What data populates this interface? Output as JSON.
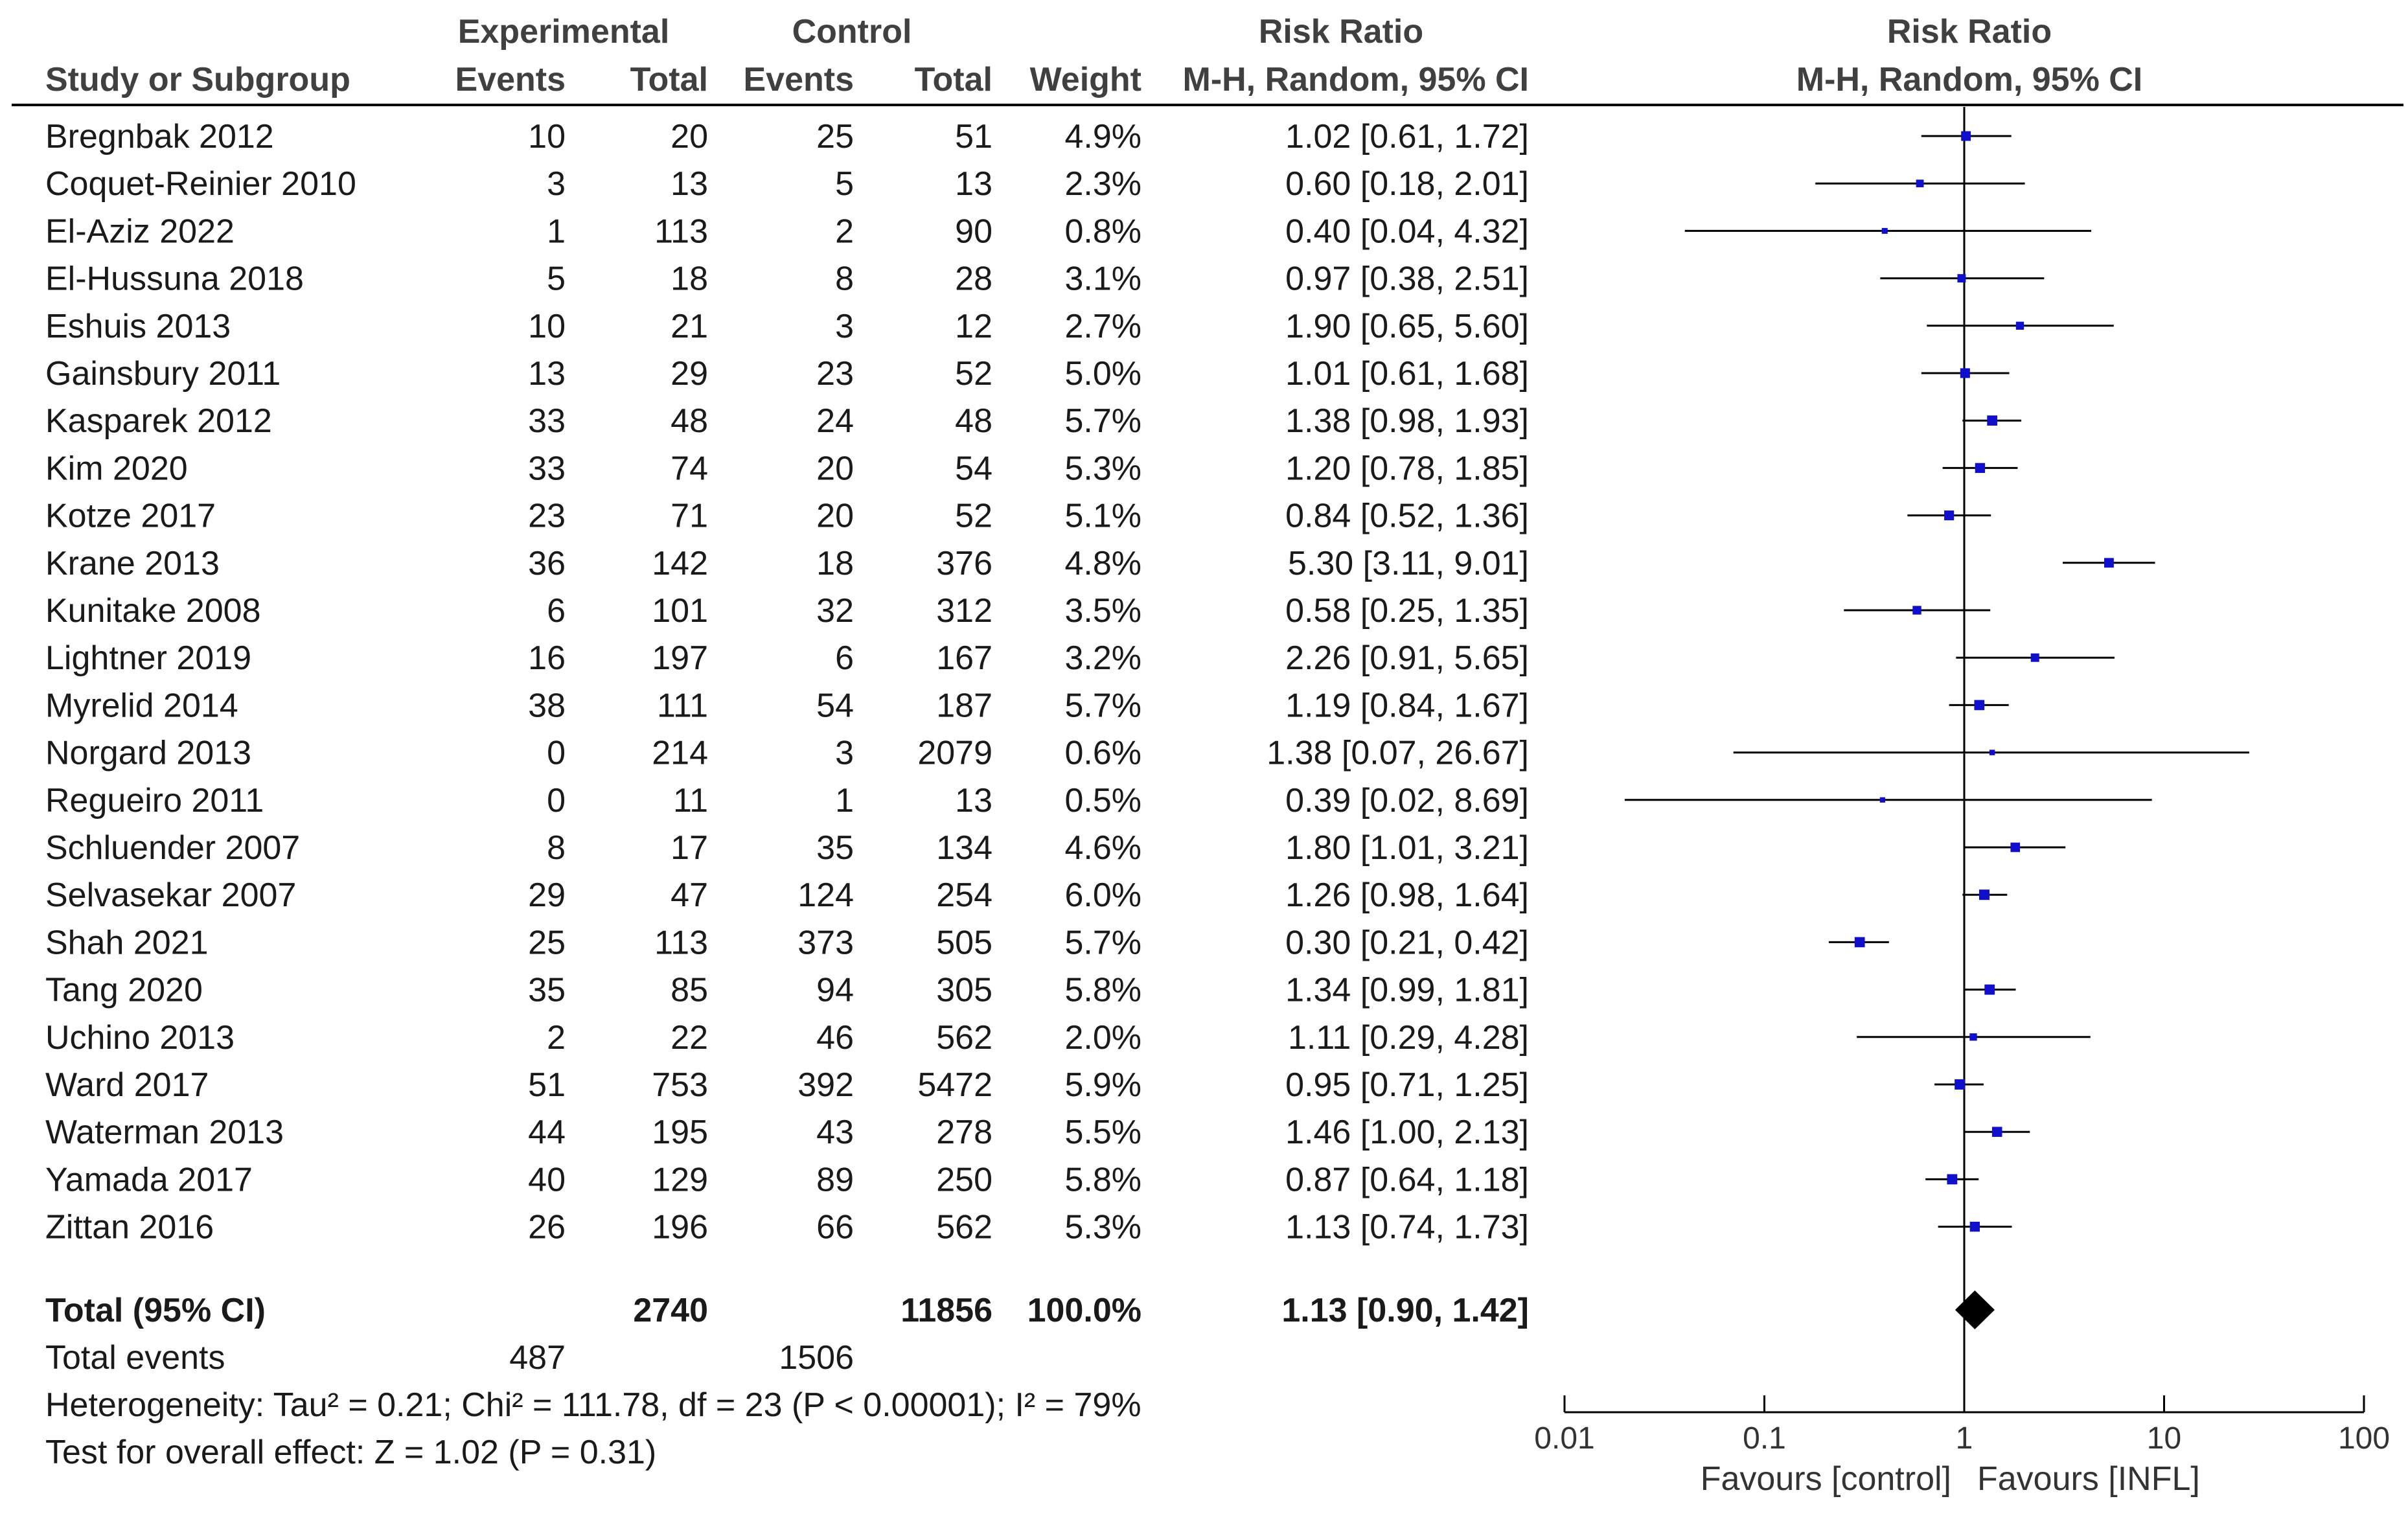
{
  "colors": {
    "marker": "#1010cc",
    "line": "#000000",
    "text": "#1a1a1a",
    "header": "#404040"
  },
  "headers": {
    "experimental": "Experimental",
    "control": "Control",
    "risk_ratio_table": "Risk Ratio",
    "risk_ratio_plot": "Risk Ratio",
    "study": "Study or Subgroup",
    "events_exp": "Events",
    "total_exp": "Total",
    "events_ctl": "Events",
    "total_ctl": "Total",
    "weight": "Weight",
    "method_table": "M-H, Random, 95% CI",
    "method_plot": "M-H, Random, 95% CI"
  },
  "chart_data": {
    "type": "forest",
    "xscale": "log",
    "xlim": [
      0.01,
      100
    ],
    "null_value": 1,
    "xticks": [
      "0.01",
      "0.1",
      "1",
      "10",
      "100"
    ],
    "favours_left": "Favours [control]",
    "favours_right": "Favours [INFL]",
    "studies": [
      {
        "name": "Bregnbak 2012",
        "e_events": "10",
        "e_total": "20",
        "c_events": "25",
        "c_total": "51",
        "weight": "4.9%",
        "ci_text": "1.02 [0.61, 1.72]",
        "rr": 1.02,
        "lo": 0.61,
        "hi": 1.72
      },
      {
        "name": "Coquet-Reinier 2010",
        "e_events": "3",
        "e_total": "13",
        "c_events": "5",
        "c_total": "13",
        "weight": "2.3%",
        "ci_text": "0.60 [0.18, 2.01]",
        "rr": 0.6,
        "lo": 0.18,
        "hi": 2.01
      },
      {
        "name": "El-Aziz 2022",
        "e_events": "1",
        "e_total": "113",
        "c_events": "2",
        "c_total": "90",
        "weight": "0.8%",
        "ci_text": "0.40 [0.04, 4.32]",
        "rr": 0.4,
        "lo": 0.04,
        "hi": 4.32
      },
      {
        "name": "El-Hussuna 2018",
        "e_events": "5",
        "e_total": "18",
        "c_events": "8",
        "c_total": "28",
        "weight": "3.1%",
        "ci_text": "0.97 [0.38, 2.51]",
        "rr": 0.97,
        "lo": 0.38,
        "hi": 2.51
      },
      {
        "name": "Eshuis 2013",
        "e_events": "10",
        "e_total": "21",
        "c_events": "3",
        "c_total": "12",
        "weight": "2.7%",
        "ci_text": "1.90 [0.65, 5.60]",
        "rr": 1.9,
        "lo": 0.65,
        "hi": 5.6
      },
      {
        "name": "Gainsbury 2011",
        "e_events": "13",
        "e_total": "29",
        "c_events": "23",
        "c_total": "52",
        "weight": "5.0%",
        "ci_text": "1.01 [0.61, 1.68]",
        "rr": 1.01,
        "lo": 0.61,
        "hi": 1.68
      },
      {
        "name": "Kasparek 2012",
        "e_events": "33",
        "e_total": "48",
        "c_events": "24",
        "c_total": "48",
        "weight": "5.7%",
        "ci_text": "1.38 [0.98, 1.93]",
        "rr": 1.38,
        "lo": 0.98,
        "hi": 1.93
      },
      {
        "name": "Kim 2020",
        "e_events": "33",
        "e_total": "74",
        "c_events": "20",
        "c_total": "54",
        "weight": "5.3%",
        "ci_text": "1.20 [0.78, 1.85]",
        "rr": 1.2,
        "lo": 0.78,
        "hi": 1.85
      },
      {
        "name": "Kotze 2017",
        "e_events": "23",
        "e_total": "71",
        "c_events": "20",
        "c_total": "52",
        "weight": "5.1%",
        "ci_text": "0.84 [0.52, 1.36]",
        "rr": 0.84,
        "lo": 0.52,
        "hi": 1.36
      },
      {
        "name": "Krane 2013",
        "e_events": "36",
        "e_total": "142",
        "c_events": "18",
        "c_total": "376",
        "weight": "4.8%",
        "ci_text": "5.30 [3.11, 9.01]",
        "rr": 5.3,
        "lo": 3.11,
        "hi": 9.01
      },
      {
        "name": "Kunitake 2008",
        "e_events": "6",
        "e_total": "101",
        "c_events": "32",
        "c_total": "312",
        "weight": "3.5%",
        "ci_text": "0.58 [0.25, 1.35]",
        "rr": 0.58,
        "lo": 0.25,
        "hi": 1.35
      },
      {
        "name": "Lightner 2019",
        "e_events": "16",
        "e_total": "197",
        "c_events": "6",
        "c_total": "167",
        "weight": "3.2%",
        "ci_text": "2.26 [0.91, 5.65]",
        "rr": 2.26,
        "lo": 0.91,
        "hi": 5.65
      },
      {
        "name": "Myrelid 2014",
        "e_events": "38",
        "e_total": "111",
        "c_events": "54",
        "c_total": "187",
        "weight": "5.7%",
        "ci_text": "1.19 [0.84, 1.67]",
        "rr": 1.19,
        "lo": 0.84,
        "hi": 1.67
      },
      {
        "name": "Norgard 2013",
        "e_events": "0",
        "e_total": "214",
        "c_events": "3",
        "c_total": "2079",
        "weight": "0.6%",
        "ci_text": "1.38 [0.07, 26.67]",
        "rr": 1.38,
        "lo": 0.07,
        "hi": 26.67
      },
      {
        "name": "Regueiro 2011",
        "e_events": "0",
        "e_total": "11",
        "c_events": "1",
        "c_total": "13",
        "weight": "0.5%",
        "ci_text": "0.39 [0.02, 8.69]",
        "rr": 0.39,
        "lo": 0.02,
        "hi": 8.69
      },
      {
        "name": "Schluender 2007",
        "e_events": "8",
        "e_total": "17",
        "c_events": "35",
        "c_total": "134",
        "weight": "4.6%",
        "ci_text": "1.80 [1.01, 3.21]",
        "rr": 1.8,
        "lo": 1.01,
        "hi": 3.21
      },
      {
        "name": "Selvasekar 2007",
        "e_events": "29",
        "e_total": "47",
        "c_events": "124",
        "c_total": "254",
        "weight": "6.0%",
        "ci_text": "1.26 [0.98, 1.64]",
        "rr": 1.26,
        "lo": 0.98,
        "hi": 1.64
      },
      {
        "name": "Shah 2021",
        "e_events": "25",
        "e_total": "113",
        "c_events": "373",
        "c_total": "505",
        "weight": "5.7%",
        "ci_text": "0.30 [0.21, 0.42]",
        "rr": 0.3,
        "lo": 0.21,
        "hi": 0.42
      },
      {
        "name": "Tang 2020",
        "e_events": "35",
        "e_total": "85",
        "c_events": "94",
        "c_total": "305",
        "weight": "5.8%",
        "ci_text": "1.34 [0.99, 1.81]",
        "rr": 1.34,
        "lo": 0.99,
        "hi": 1.81
      },
      {
        "name": "Uchino 2013",
        "e_events": "2",
        "e_total": "22",
        "c_events": "46",
        "c_total": "562",
        "weight": "2.0%",
        "ci_text": "1.11 [0.29, 4.28]",
        "rr": 1.11,
        "lo": 0.29,
        "hi": 4.28
      },
      {
        "name": "Ward 2017",
        "e_events": "51",
        "e_total": "753",
        "c_events": "392",
        "c_total": "5472",
        "weight": "5.9%",
        "ci_text": "0.95 [0.71, 1.25]",
        "rr": 0.95,
        "lo": 0.71,
        "hi": 1.25
      },
      {
        "name": "Waterman 2013",
        "e_events": "44",
        "e_total": "195",
        "c_events": "43",
        "c_total": "278",
        "weight": "5.5%",
        "ci_text": "1.46 [1.00, 2.13]",
        "rr": 1.46,
        "lo": 1.0,
        "hi": 2.13
      },
      {
        "name": "Yamada 2017",
        "e_events": "40",
        "e_total": "129",
        "c_events": "89",
        "c_total": "250",
        "weight": "5.8%",
        "ci_text": "0.87 [0.64, 1.18]",
        "rr": 0.87,
        "lo": 0.64,
        "hi": 1.18
      },
      {
        "name": "Zittan 2016",
        "e_events": "26",
        "e_total": "196",
        "c_events": "66",
        "c_total": "562",
        "weight": "5.3%",
        "ci_text": "1.13 [0.74, 1.73]",
        "rr": 1.13,
        "lo": 0.74,
        "hi": 1.73
      }
    ],
    "total": {
      "label": "Total (95% CI)",
      "e_total": "2740",
      "c_total": "11856",
      "weight": "100.0%",
      "ci_text": "1.13 [0.90, 1.42]",
      "rr": 1.13,
      "lo": 0.9,
      "hi": 1.42
    },
    "total_events": {
      "label": "Total events",
      "experimental": "487",
      "control": "1506"
    },
    "heterogeneity": "Heterogeneity: Tau² = 0.21; Chi² = 111.78, df = 23 (P < 0.00001); I² = 79%",
    "overall_effect": "Test for overall effect: Z = 1.02 (P = 0.31)"
  }
}
